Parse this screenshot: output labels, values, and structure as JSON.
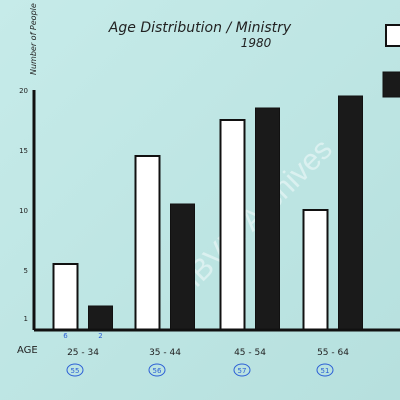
{
  "chart_data": {
    "type": "bar",
    "title": "Age Distribution / Ministry",
    "subtitle": "1980",
    "ylabel": "Number of People",
    "xlabel": "AGE",
    "ylim": [
      0,
      20
    ],
    "yticks": [
      "1",
      "5",
      "10",
      "15",
      "20"
    ],
    "categories": [
      "25 - 34",
      "35 - 44",
      "45 - 54",
      "55 - 64"
    ],
    "category_annotations": [
      "55",
      "56",
      "57",
      "51"
    ],
    "small_annotations": [
      "6",
      "2"
    ],
    "series": [
      {
        "values": [
          5.5,
          14.5,
          17.5,
          10
        ]
      },
      {
        "values": [
          2,
          10.5,
          18.5,
          19.5
        ]
      }
    ],
    "legend_position": "top-right",
    "colors": {
      "series_1_fill": "#ffffff",
      "series_2_fill": "#1a1a1a",
      "stroke": "#111111"
    },
    "watermark": "IBVM Archives"
  }
}
